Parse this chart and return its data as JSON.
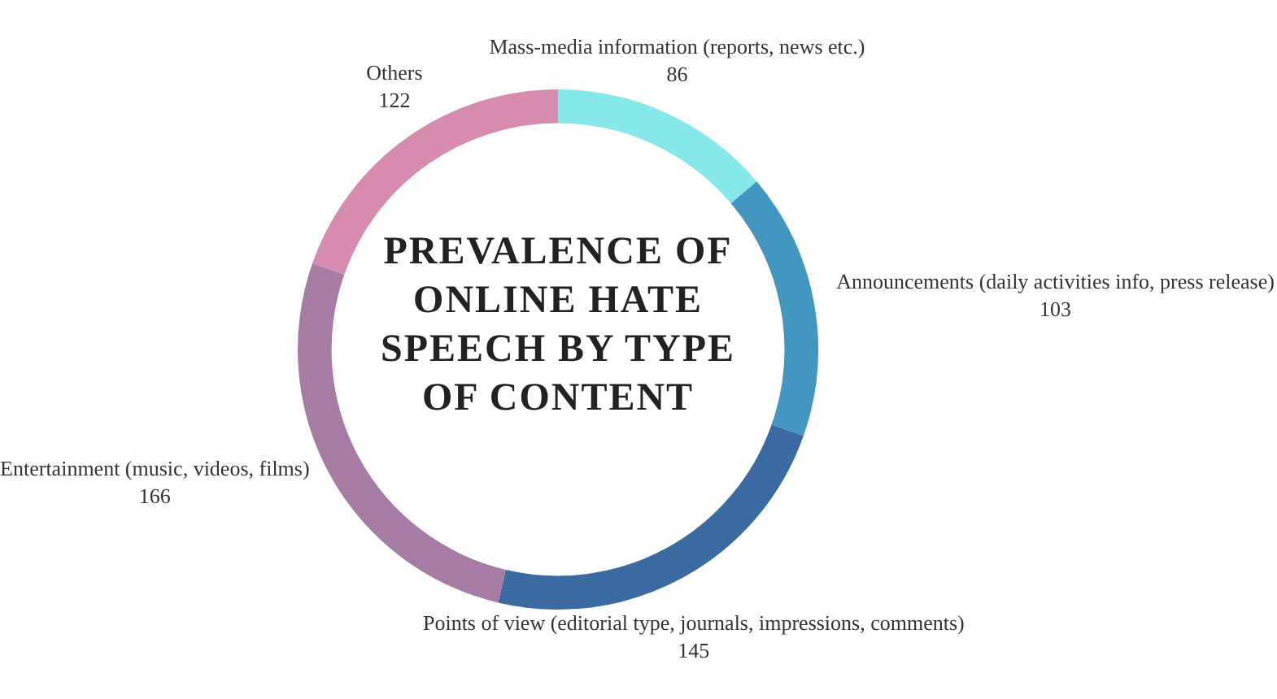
{
  "chart_data": {
    "type": "donut",
    "title": "PREVALENCE OF ONLINE HATE SPEECH BY TYPE OF CONTENT",
    "categories": [
      "Mass-media information (reports, news etc.)",
      "Announcements (daily activities info, press release)",
      "Points of view (editorial type, journals, impressions, comments)",
      "Entertainment (music, videos, films)",
      "Others"
    ],
    "values": [
      86,
      103,
      145,
      166,
      122
    ],
    "colors": [
      "#86e8e8",
      "#4396c0",
      "#3a6aa0",
      "#a77ca4",
      "#d88bb0"
    ],
    "data_labels": true,
    "legend": false
  }
}
